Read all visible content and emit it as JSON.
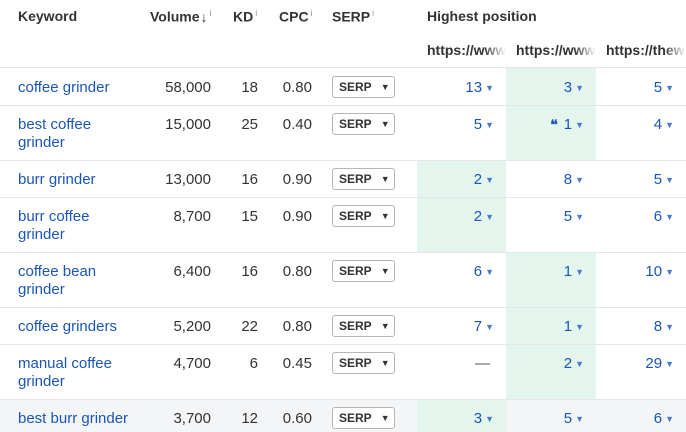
{
  "header": {
    "keyword": "Keyword",
    "volume": "Volume",
    "volume_sort_glyph": "↓",
    "kd": "KD",
    "cpc": "CPC",
    "serp": "SERP",
    "info_glyph": "i",
    "highest_position": "Highest position",
    "url_columns": [
      "https://www",
      "https://www",
      "https://thew"
    ]
  },
  "serp_button_label": "SERP",
  "caret_glyph": "▼",
  "featured_snippet_glyph": "❛❛",
  "rows": [
    {
      "keyword": "coffee grinder",
      "volume": "58,000",
      "kd": "18",
      "cpc": "0.80",
      "positions": [
        "13",
        "3",
        "5"
      ]
    },
    {
      "keyword": "best coffee grinder",
      "volume": "15,000",
      "kd": "25",
      "cpc": "0.40",
      "positions": [
        "5",
        "1",
        "4"
      ]
    },
    {
      "keyword": "burr grinder",
      "volume": "13,000",
      "kd": "16",
      "cpc": "0.90",
      "positions": [
        "2",
        "8",
        "5"
      ]
    },
    {
      "keyword": "burr coffee grinder",
      "volume": "8,700",
      "kd": "15",
      "cpc": "0.90",
      "positions": [
        "2",
        "5",
        "6"
      ]
    },
    {
      "keyword": "coffee bean grinder",
      "volume": "6,400",
      "kd": "16",
      "cpc": "0.80",
      "positions": [
        "6",
        "1",
        "10"
      ]
    },
    {
      "keyword": "coffee grinders",
      "volume": "5,200",
      "kd": "22",
      "cpc": "0.80",
      "positions": [
        "7",
        "1",
        "8"
      ]
    },
    {
      "keyword": "manual coffee grinder",
      "volume": "4,700",
      "kd": "6",
      "cpc": "0.45",
      "positions": [
        "—",
        "2",
        "29"
      ]
    },
    {
      "keyword": "best burr grinder",
      "volume": "3,700",
      "kd": "12",
      "cpc": "0.60",
      "positions": [
        "3",
        "5",
        "6"
      ]
    }
  ],
  "highlighted_cells": [
    {
      "row": 0,
      "col": 1
    },
    {
      "row": 1,
      "col": 1
    },
    {
      "row": 2,
      "col": 0
    },
    {
      "row": 3,
      "col": 0
    },
    {
      "row": 4,
      "col": 1
    },
    {
      "row": 5,
      "col": 1
    },
    {
      "row": 6,
      "col": 1
    },
    {
      "row": 7,
      "col": 0
    }
  ],
  "featured_snippet": {
    "row": 1,
    "col": 1
  },
  "hovered_row": 7,
  "colors": {
    "link": "#1a56b8",
    "highlight": "#e3f5ec",
    "hover_row": "#f4f5f7",
    "divider": "#e6e6e6"
  }
}
